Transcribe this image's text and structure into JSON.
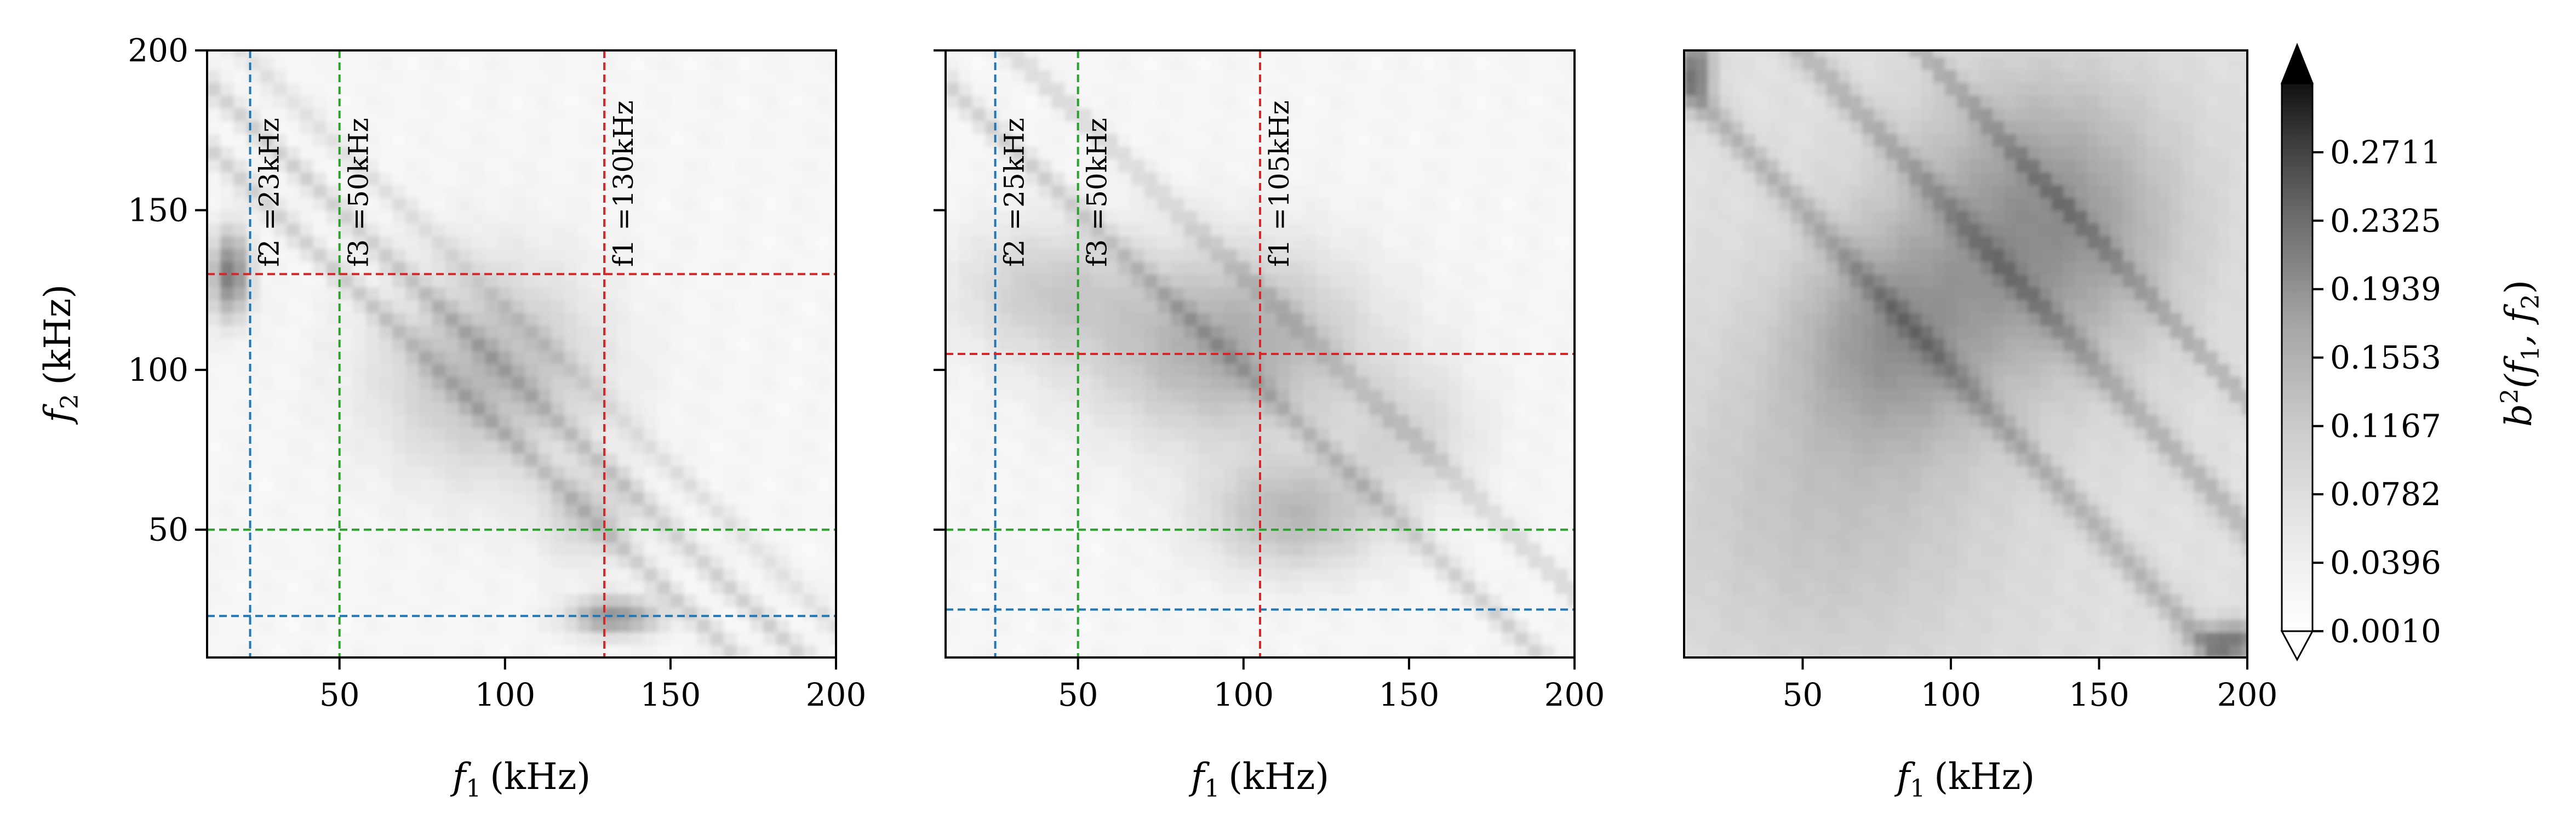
{
  "chart_data": {
    "type": "heatmap",
    "colorbar": {
      "label_main": "b",
      "label_sup": "2",
      "label_args": "(f",
      "label_sub1": "1",
      "label_comma": ", f",
      "label_sub2": "2",
      "label_close": ")",
      "ticks": [
        "0.0010",
        "0.0396",
        "0.0782",
        "0.1167",
        "0.1553",
        "0.1939",
        "0.2325",
        "0.2711"
      ],
      "range": [
        0.001,
        0.31
      ],
      "colormap": "Greys"
    },
    "shared": {
      "xlim": [
        10,
        200
      ],
      "ylim": [
        10,
        200
      ],
      "xticks": [
        50,
        100,
        150,
        200
      ],
      "yticks": [
        50,
        100,
        150,
        200
      ],
      "xlabel_var": "f",
      "xlabel_sub": "1",
      "xlabel_unit": "(kHz)",
      "ylabel_var": "f",
      "ylabel_sub": "2",
      "ylabel_unit": "(kHz)"
    },
    "panels": [
      {
        "id": "left",
        "lines": [
          {
            "freq": 23,
            "color": "#1f77b4",
            "label": "f2 =23kHz"
          },
          {
            "freq": 50,
            "color": "#2ca02c",
            "label": "f3 =50kHz"
          },
          {
            "freq": 130,
            "color": "#d62728",
            "label": "f1 =130kHz"
          }
        ],
        "blobs": [
          {
            "x": 17,
            "y": 130,
            "sx": 4,
            "sy": 9,
            "v": 0.16
          },
          {
            "x": 133,
            "y": 23,
            "sx": 9,
            "sy": 4,
            "v": 0.13
          },
          {
            "x": 95,
            "y": 100,
            "sx": 22,
            "sy": 22,
            "v": 0.08
          },
          {
            "x": 125,
            "y": 55,
            "sx": 10,
            "sy": 10,
            "v": 0.05
          }
        ],
        "ridges": [
          {
            "sum": 180,
            "v": 0.05,
            "w": 3
          },
          {
            "sum": 200,
            "v": 0.05,
            "w": 3
          },
          {
            "sum": 220,
            "v": 0.03,
            "w": 3
          }
        ]
      },
      {
        "id": "middle",
        "lines": [
          {
            "freq": 25,
            "color": "#1f77b4",
            "label": "f2 =25kHz"
          },
          {
            "freq": 50,
            "color": "#2ca02c",
            "label": "f3 =50kHz"
          },
          {
            "freq": 105,
            "color": "#d62728",
            "label": "f1 =105kHz"
          }
        ],
        "blobs": [
          {
            "x": 95,
            "y": 108,
            "sx": 28,
            "sy": 20,
            "v": 0.1
          },
          {
            "x": 115,
            "y": 55,
            "sx": 18,
            "sy": 12,
            "v": 0.08
          },
          {
            "x": 40,
            "y": 125,
            "sx": 18,
            "sy": 14,
            "v": 0.05
          },
          {
            "x": 150,
            "y": 80,
            "sx": 15,
            "sy": 15,
            "v": 0.04
          }
        ],
        "ridges": [
          {
            "sum": 200,
            "v": 0.05,
            "w": 3
          },
          {
            "sum": 230,
            "v": 0.04,
            "w": 3
          }
        ]
      },
      {
        "id": "right",
        "lines": [],
        "blobs": [
          {
            "x": 130,
            "y": 145,
            "sx": 30,
            "sy": 30,
            "v": 0.11
          },
          {
            "x": 80,
            "y": 110,
            "sx": 22,
            "sy": 22,
            "v": 0.08
          },
          {
            "x": 14,
            "y": 195,
            "sx": 4,
            "sy": 8,
            "v": 0.13
          },
          {
            "x": 195,
            "y": 15,
            "sx": 8,
            "sy": 4,
            "v": 0.14
          },
          {
            "x": 60,
            "y": 60,
            "sx": 40,
            "sy": 40,
            "v": 0.04
          }
        ],
        "ridges": [
          {
            "sum": 200,
            "v": 0.06,
            "w": 4
          },
          {
            "sum": 250,
            "v": 0.06,
            "w": 4
          },
          {
            "sum": 290,
            "v": 0.06,
            "w": 3
          }
        ],
        "base": 0.04
      }
    ]
  }
}
